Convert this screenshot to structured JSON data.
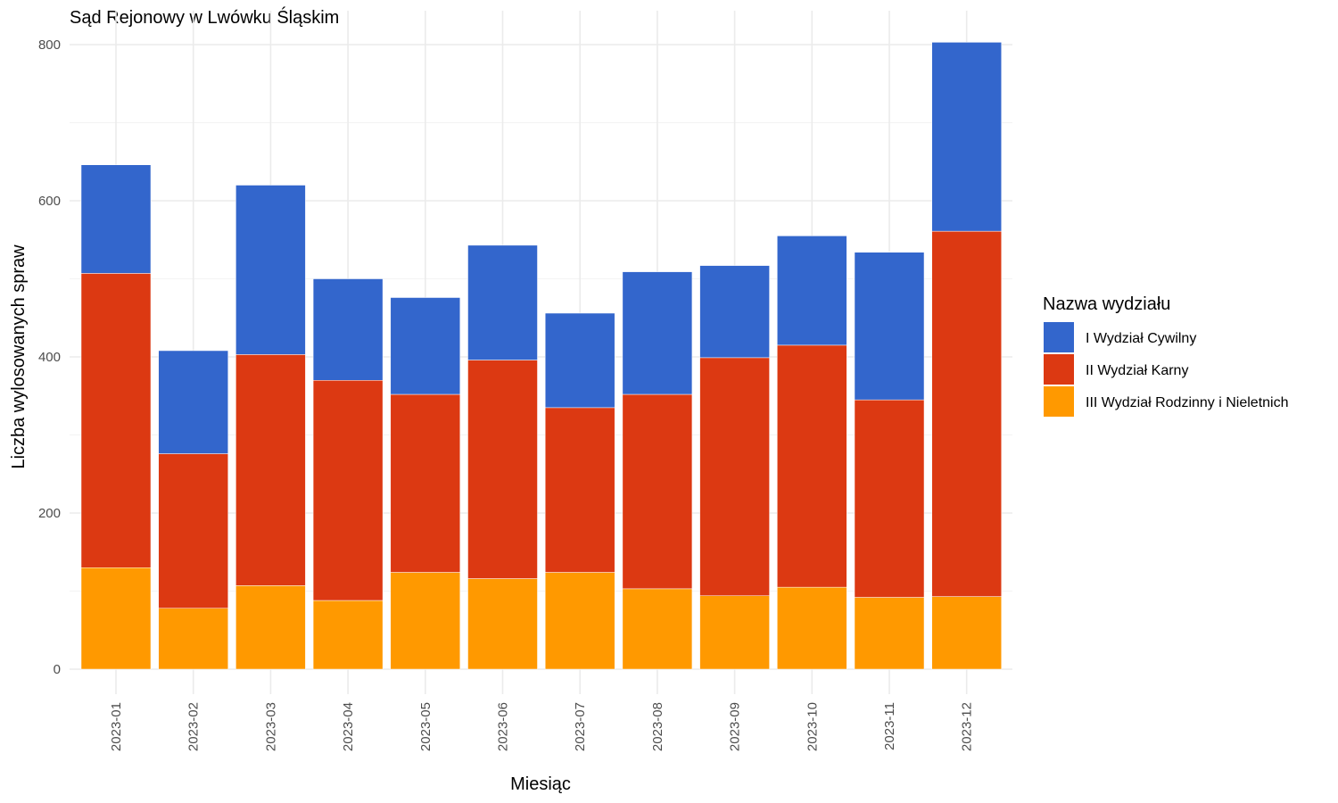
{
  "chart_data": {
    "type": "bar",
    "stacked": true,
    "title": "Sąd Rejonowy w Lwówku Śląskim",
    "xlabel": "Miesiąc",
    "ylabel": "Liczba wylosowanych spraw",
    "ylim": [
      0,
      800
    ],
    "yticks": [
      "0",
      "200",
      "400",
      "600",
      "800"
    ],
    "grid": true,
    "legend_position": "right",
    "legend_title": "Nazwa wydziału",
    "categories": [
      "2023-01",
      "2023-02",
      "2023-03",
      "2023-04",
      "2023-05",
      "2023-06",
      "2023-07",
      "2023-08",
      "2023-09",
      "2023-10",
      "2023-11",
      "2023-12"
    ],
    "series": [
      {
        "name": "III Wydział Rodzinny i Nieletnich",
        "color": "#FF9900",
        "values": [
          130,
          78,
          107,
          88,
          124,
          116,
          124,
          103,
          94,
          105,
          92,
          93
        ]
      },
      {
        "name": "II Wydział Karny",
        "color": "#DC3912",
        "values": [
          377,
          198,
          296,
          282,
          228,
          280,
          211,
          249,
          305,
          310,
          253,
          468
        ]
      },
      {
        "name": "I Wydział Cywilny",
        "color": "#3366CC",
        "values": [
          139,
          132,
          217,
          130,
          124,
          147,
          121,
          157,
          118,
          140,
          189,
          242
        ]
      }
    ],
    "legend_order": [
      "I Wydział Cywilny",
      "II Wydział Karny",
      "III Wydział Rodzinny i Nieletnich"
    ]
  }
}
